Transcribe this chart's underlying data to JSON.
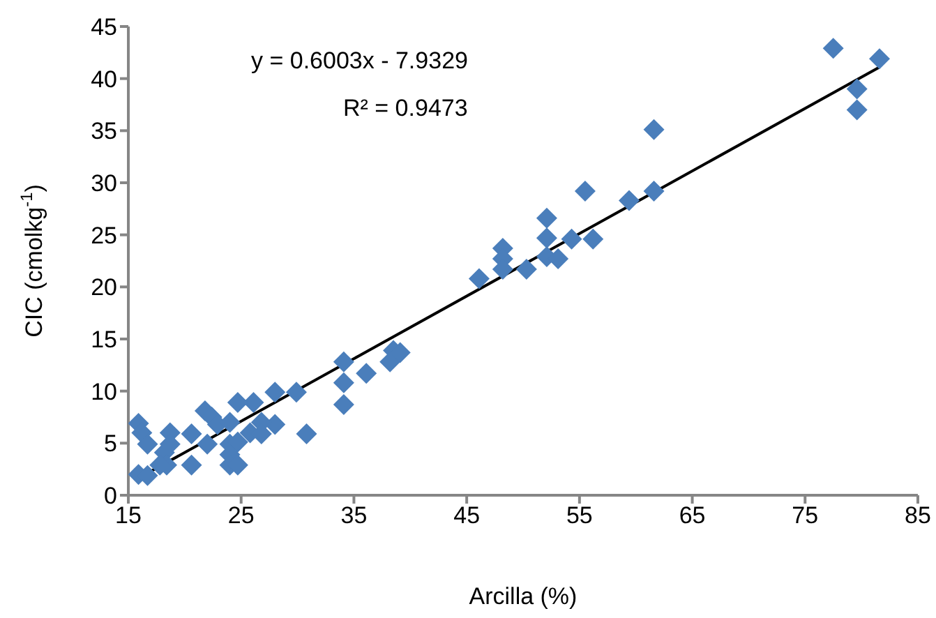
{
  "chart_data": {
    "type": "scatter",
    "xlabel": "Arcilla (%)",
    "ylabel": "CIC (cmolkg$^{-1}$)",
    "xlim": [
      15,
      85
    ],
    "xticks": [
      15,
      25,
      35,
      45,
      55,
      65,
      75,
      85
    ],
    "ylim": [
      0,
      45
    ],
    "yticks": [
      0,
      5,
      10,
      15,
      20,
      25,
      30,
      35,
      40,
      45
    ],
    "grid": false,
    "marker": "diamond",
    "line_style": "solid",
    "annotations": [
      "y = 0.6003x - 7.9329",
      "R² = 0.9473"
    ],
    "series": [
      {
        "color": "#4a7ebb",
        "x": [
          77.5,
          81.6,
          79.6,
          79.6,
          61.6,
          55.5,
          61.6,
          59.4,
          52.1,
          52.1,
          54.3,
          56.2,
          48.2,
          48.2,
          52.1,
          53.1,
          48.2,
          50.3,
          46.1,
          38.5,
          38.2,
          39.1,
          34.1,
          34.1,
          36.1,
          34.1,
          29.9,
          28.0,
          28.0,
          30.8,
          26.1,
          24.7,
          26.8,
          25.8,
          26.8,
          21.8,
          22.4,
          22.9,
          24.0,
          20.6,
          22.0,
          24.0,
          24.7,
          24.0,
          24.0,
          24.7,
          20.6,
          18.7,
          18.7,
          18.2,
          18.4,
          17.8,
          15.9,
          16.2,
          16.7,
          15.9,
          16.7
        ],
        "values": [
          42.9,
          41.9,
          39.0,
          37.0,
          35.1,
          29.2,
          29.2,
          28.3,
          26.6,
          24.7,
          24.6,
          24.6,
          23.7,
          22.7,
          22.9,
          22.7,
          21.7,
          21.7,
          20.8,
          13.9,
          12.8,
          13.7,
          12.8,
          10.8,
          11.7,
          8.7,
          9.9,
          9.9,
          6.8,
          5.9,
          8.9,
          8.9,
          7.0,
          6.0,
          5.9,
          8.1,
          7.5,
          6.8,
          7.0,
          5.9,
          4.9,
          4.9,
          5.1,
          3.9,
          2.9,
          2.9,
          2.9,
          6.0,
          4.9,
          4.1,
          2.9,
          2.9,
          6.9,
          6.0,
          4.9,
          2.0,
          1.9
        ]
      },
      {
        "type": "line",
        "marker": "none",
        "color": "#000000",
        "x": [
          16,
          81.6
        ],
        "values": [
          1.7,
          41.1
        ]
      }
    ]
  }
}
